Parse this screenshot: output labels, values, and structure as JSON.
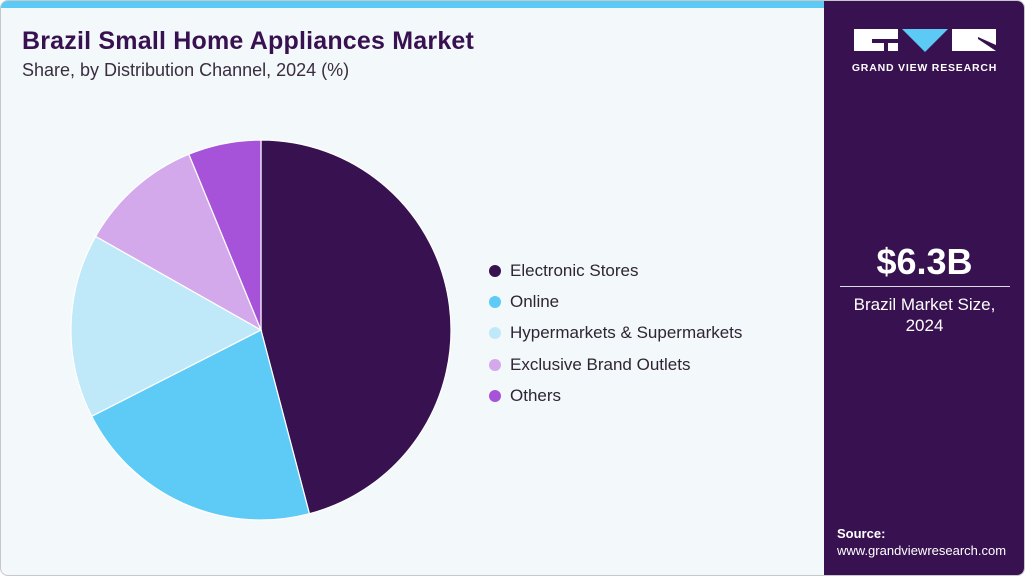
{
  "header": {
    "title": "Brazil Small Home Appliances Market",
    "subtitle": "Share, by Distribution Channel, 2024 (%)"
  },
  "sidebar": {
    "logo_text": "GRAND VIEW RESEARCH",
    "market_value": "$6.3B",
    "market_label_line1": "Brazil Market Size,",
    "market_label_line2": "2024",
    "source_label": "Source:",
    "source_url": "www.grandviewresearch.com"
  },
  "colors": {
    "brand_dark": "#381150",
    "accent_blue": "#5dc9f5",
    "background": "#f3f8fb"
  },
  "legend": [
    {
      "label": "Electronic Stores",
      "color": "#381150"
    },
    {
      "label": "Online",
      "color": "#5dcbf6"
    },
    {
      "label": "Hypermarkets & Supermarkets",
      "color": "#bfe9f9"
    },
    {
      "label": "Exclusive Brand Outlets",
      "color": "#d4a9ec"
    },
    {
      "label": "Others",
      "color": "#a653d9"
    }
  ],
  "chart_data": {
    "type": "pie",
    "title": "Brazil Small Home Appliances Market",
    "subtitle": "Share, by Distribution Channel, 2024 (%)",
    "categories": [
      "Electronic Stores",
      "Online",
      "Hypermarkets & Supermarkets",
      "Exclusive Brand Outlets",
      "Others"
    ],
    "values": [
      45.9,
      21.6,
      15.7,
      10.6,
      6.2
    ],
    "colors": [
      "#381150",
      "#5dcbf6",
      "#bfe9f9",
      "#d4a9ec",
      "#a653d9"
    ],
    "start_angle": "12 o'clock, clockwise",
    "legend_position": "right",
    "data_labels": false
  }
}
